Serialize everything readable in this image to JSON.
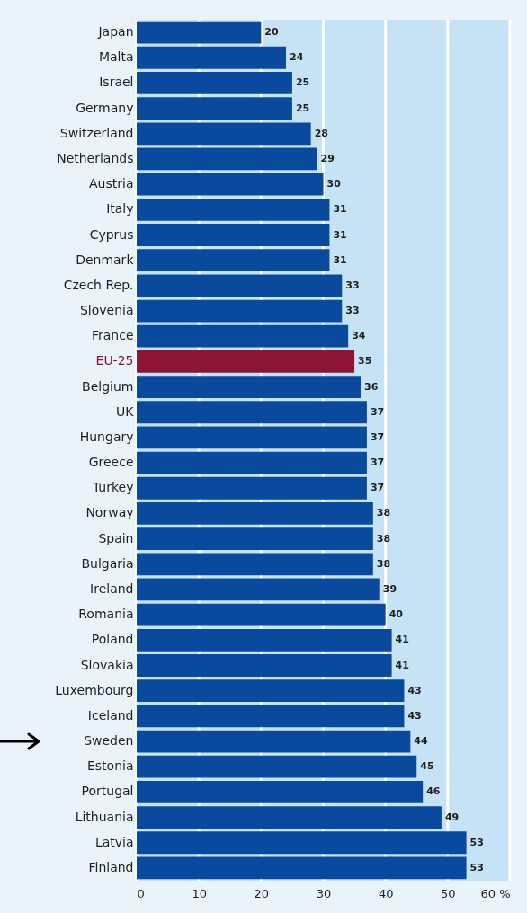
{
  "chart_data": {
    "type": "bar",
    "orientation": "horizontal",
    "categories": [
      "Japan",
      "Malta",
      "Israel",
      "Germany",
      "Switzerland",
      "Netherlands",
      "Austria",
      "Italy",
      "Cyprus",
      "Denmark",
      "Czech Rep.",
      "Slovenia",
      "France",
      "EU-25",
      "Belgium",
      "UK",
      "Hungary",
      "Greece",
      "Turkey",
      "Norway",
      "Spain",
      "Bulgaria",
      "Ireland",
      "Romania",
      "Poland",
      "Slovakia",
      "Luxembourg",
      "Iceland",
      "Sweden",
      "Estonia",
      "Portugal",
      "Lithuania",
      "Latvia",
      "Finland"
    ],
    "values": [
      20,
      24,
      25,
      25,
      28,
      29,
      30,
      31,
      31,
      31,
      33,
      33,
      34,
      35,
      36,
      37,
      37,
      37,
      37,
      38,
      38,
      38,
      39,
      40,
      41,
      41,
      43,
      43,
      44,
      45,
      46,
      49,
      53,
      53
    ],
    "colors": [
      "#0a4a9e",
      "#0a4a9e",
      "#0a4a9e",
      "#0a4a9e",
      "#0a4a9e",
      "#0a4a9e",
      "#0a4a9e",
      "#0a4a9e",
      "#0a4a9e",
      "#0a4a9e",
      "#0a4a9e",
      "#0a4a9e",
      "#0a4a9e",
      "#8c1536",
      "#0a4a9e",
      "#0a4a9e",
      "#0a4a9e",
      "#0a4a9e",
      "#0a4a9e",
      "#0a4a9e",
      "#0a4a9e",
      "#0a4a9e",
      "#0a4a9e",
      "#0a4a9e",
      "#0a4a9e",
      "#0a4a9e",
      "#0a4a9e",
      "#0a4a9e",
      "#0a4a9e",
      "#0a4a9e",
      "#0a4a9e",
      "#0a4a9e",
      "#0a4a9e",
      "#0a4a9e"
    ],
    "xlim": [
      0,
      60
    ],
    "xticks": [
      0,
      10,
      20,
      30,
      40,
      50,
      {
        "value": 60,
        "label": "60 %"
      }
    ],
    "bands": [
      {
        "axis": "x",
        "from": 0,
        "to": 60,
        "color": "#c6e2f5"
      }
    ],
    "grid": "x",
    "data_labels": true
  }
}
